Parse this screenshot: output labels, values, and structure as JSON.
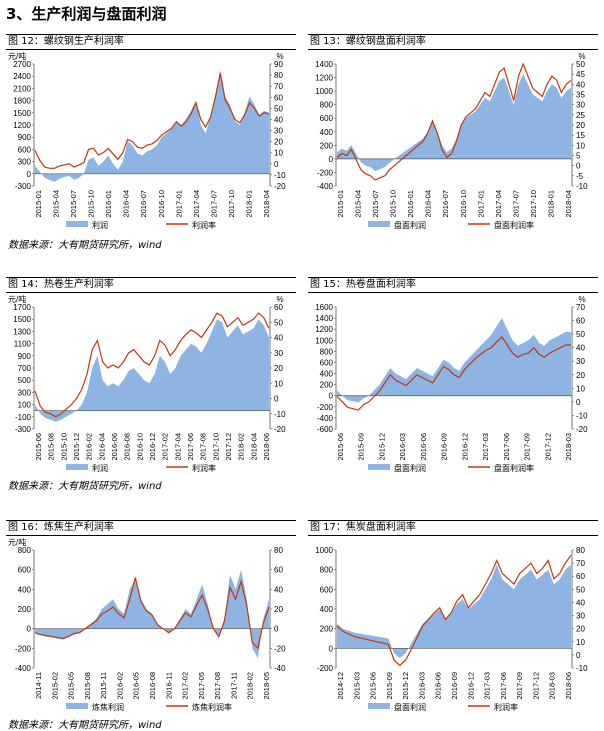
{
  "section_title": "3、生产利润与盘面利润",
  "source_note": "数据来源：大有期货研究所，wind",
  "colors": {
    "bar": "#8eb4e3",
    "line": "#c0390f"
  },
  "chart_data": [
    {
      "type": "area",
      "title": "图 12：螺纹钢生产利润率",
      "left_unit": "元/吨",
      "right_unit": "%",
      "left_ticks": [
        -300,
        0,
        300,
        600,
        900,
        1200,
        1500,
        1800,
        2100,
        2400,
        2700
      ],
      "right_ticks": [
        -20,
        -10,
        0,
        10,
        20,
        30,
        40,
        50,
        60,
        70,
        80,
        90
      ],
      "x_ticks": [
        "2015-01",
        "2015-04",
        "2015-07",
        "2015-10",
        "2016-01",
        "2016-04",
        "2016-07",
        "2016-10",
        "2017-01",
        "2017-04",
        "2017-07",
        "2017-10",
        "2018-01",
        "2018-04"
      ],
      "series": [
        {
          "name": "利润",
          "kind": "area",
          "axis": "left",
          "values": [
            200,
            50,
            -100,
            -150,
            -200,
            -120,
            -80,
            -50,
            -150,
            -100,
            0,
            350,
            400,
            200,
            300,
            450,
            250,
            100,
            300,
            800,
            700,
            500,
            450,
            550,
            600,
            700,
            900,
            1000,
            1100,
            1300,
            1200,
            1350,
            1550,
            1800,
            1200,
            1000,
            1400,
            1950,
            2550,
            1900,
            1700,
            1300,
            1200,
            1500,
            1900,
            1700,
            1450,
            1550,
            1500
          ]
        },
        {
          "name": "利润率",
          "kind": "line",
          "axis": "right",
          "values": [
            12,
            3,
            -3,
            -4,
            -4,
            -2,
            -1,
            0,
            -3,
            -1,
            1,
            13,
            14,
            8,
            10,
            14,
            9,
            4,
            10,
            22,
            20,
            15,
            14,
            17,
            18,
            21,
            26,
            29,
            32,
            38,
            34,
            38,
            45,
            55,
            40,
            33,
            42,
            60,
            82,
            58,
            50,
            40,
            37,
            44,
            55,
            50,
            43,
            46,
            45
          ]
        }
      ]
    },
    {
      "type": "area",
      "title": "图 13：螺纹钢盘面利润率",
      "left_unit": "",
      "right_unit": "%",
      "left_ticks": [
        -400,
        -200,
        0,
        200,
        400,
        600,
        800,
        1000,
        1200,
        1400
      ],
      "right_ticks": [
        -10,
        -5,
        0,
        5,
        10,
        15,
        20,
        25,
        30,
        35,
        40,
        45,
        50
      ],
      "x_ticks": [
        "2015-01",
        "2015-04",
        "2015-07",
        "2015-10",
        "2016-01",
        "2016-04",
        "2016-07",
        "2016-10",
        "2017-01",
        "2017-04",
        "2017-07",
        "2017-10",
        "2018-01",
        "2018-04"
      ],
      "series": [
        {
          "name": "盘面利润",
          "kind": "area",
          "axis": "left",
          "values": [
            100,
            150,
            120,
            200,
            80,
            -50,
            -100,
            -120,
            -180,
            -150,
            -120,
            -60,
            0,
            50,
            100,
            150,
            200,
            250,
            300,
            400,
            550,
            400,
            200,
            100,
            150,
            300,
            500,
            600,
            650,
            700,
            800,
            900,
            850,
            1000,
            1150,
            1200,
            1000,
            800,
            1100,
            1250,
            1100,
            950,
            900,
            850,
            1000,
            1100,
            1050,
            900,
            1000,
            1050
          ]
        },
        {
          "name": "盘面利润率",
          "kind": "line",
          "axis": "right",
          "values": [
            4,
            6,
            5,
            8,
            3,
            -2,
            -4,
            -5,
            -7,
            -6,
            -5,
            -2,
            0,
            2,
            4,
            6,
            8,
            10,
            12,
            16,
            22,
            16,
            8,
            4,
            6,
            12,
            20,
            24,
            26,
            28,
            32,
            36,
            34,
            40,
            46,
            48,
            40,
            32,
            44,
            50,
            44,
            38,
            36,
            34,
            40,
            44,
            42,
            36,
            40,
            42
          ]
        }
      ]
    },
    {
      "type": "area",
      "title": "图 14：热卷生产利润率",
      "left_unit": "元/吨",
      "right_unit": "%",
      "left_ticks": [
        -300,
        -100,
        100,
        300,
        500,
        700,
        900,
        1100,
        1300,
        1500,
        1700
      ],
      "right_ticks": [
        -20,
        -10,
        0,
        10,
        20,
        30,
        40,
        50,
        60
      ],
      "x_ticks": [
        "2015-06",
        "2015-08",
        "2015-10",
        "2015-12",
        "2016-02",
        "2016-04",
        "2016-06",
        "2016-08",
        "2016-10",
        "2016-12",
        "2017-02",
        "2017-04",
        "2017-06",
        "2017-08",
        "2017-10",
        "2017-12",
        "2018-02",
        "2018-04",
        "2018-06"
      ],
      "series": [
        {
          "name": "利润",
          "kind": "area",
          "axis": "left",
          "values": [
            100,
            -50,
            -120,
            -150,
            -180,
            -150,
            -100,
            -50,
            0,
            100,
            300,
            700,
            900,
            500,
            400,
            450,
            400,
            500,
            650,
            700,
            600,
            500,
            450,
            600,
            900,
            800,
            600,
            700,
            900,
            1000,
            1100,
            1050,
            950,
            1100,
            1300,
            1500,
            1450,
            1200,
            1300,
            1400,
            1250,
            1300,
            1350,
            1500,
            1400,
            1200
          ]
        },
        {
          "name": "利润率",
          "kind": "line",
          "axis": "right",
          "values": [
            5,
            -5,
            -9,
            -10,
            -12,
            -10,
            -7,
            -4,
            0,
            6,
            16,
            32,
            38,
            24,
            20,
            22,
            20,
            24,
            30,
            32,
            28,
            24,
            22,
            28,
            38,
            35,
            28,
            32,
            38,
            42,
            45,
            43,
            40,
            45,
            50,
            56,
            54,
            47,
            50,
            53,
            48,
            50,
            52,
            56,
            53,
            46
          ]
        }
      ]
    },
    {
      "type": "area",
      "title": "图 15：热卷盘面利润率",
      "left_unit": "",
      "right_unit": "%",
      "left_ticks": [
        -600,
        -400,
        -200,
        0,
        200,
        400,
        600,
        800,
        1000,
        1200,
        1400,
        1600
      ],
      "right_ticks": [
        -20,
        -10,
        0,
        10,
        20,
        30,
        40,
        50,
        60,
        70
      ],
      "x_ticks": [
        "2015-06",
        "2015-09",
        "2015-12",
        "2016-03",
        "2016-06",
        "2016-09",
        "2016-12",
        "2017-03",
        "2017-06",
        "2017-09",
        "2017-12",
        "2018-03"
      ],
      "series": [
        {
          "name": "盘面利润",
          "kind": "area",
          "axis": "left",
          "values": [
            100,
            0,
            -80,
            -100,
            -120,
            -50,
            0,
            100,
            200,
            350,
            500,
            400,
            350,
            300,
            400,
            500,
            450,
            400,
            350,
            500,
            650,
            600,
            500,
            450,
            600,
            700,
            800,
            900,
            1000,
            1100,
            1250,
            1400,
            1200,
            1000,
            900,
            950,
            1000,
            1100,
            950,
            900,
            1000,
            1050,
            1100,
            1150,
            1150
          ]
        },
        {
          "name": "盘面利润率",
          "kind": "line",
          "axis": "right",
          "values": [
            4,
            0,
            -4,
            -5,
            -6,
            -2,
            0,
            4,
            8,
            14,
            20,
            16,
            14,
            12,
            16,
            20,
            18,
            16,
            14,
            20,
            26,
            24,
            20,
            18,
            24,
            28,
            32,
            35,
            38,
            40,
            44,
            48,
            42,
            36,
            33,
            35,
            36,
            40,
            35,
            33,
            36,
            38,
            40,
            42,
            42
          ]
        }
      ]
    },
    {
      "type": "area",
      "title": "图 16：炼焦生产利润率",
      "left_unit": "元/吨",
      "right_unit": "",
      "left_ticks": [
        -400,
        -200,
        0,
        200,
        400,
        600,
        800
      ],
      "right_ticks": [
        -40,
        -20,
        0,
        20,
        40,
        60,
        80
      ],
      "x_ticks": [
        "2014-11",
        "2015-02",
        "2015-05",
        "2015-08",
        "2015-11",
        "2016-02",
        "2016-05",
        "2016-08",
        "2016-11",
        "2017-02",
        "2017-05",
        "2017-08",
        "2017-11",
        "2018-02",
        "2018-05"
      ],
      "series": [
        {
          "name": "炼焦利润",
          "kind": "area",
          "axis": "left",
          "values": [
            -50,
            -70,
            -80,
            -90,
            -100,
            -110,
            -90,
            -60,
            -50,
            0,
            50,
            100,
            200,
            250,
            300,
            200,
            150,
            400,
            500,
            300,
            200,
            150,
            50,
            0,
            -50,
            0,
            100,
            200,
            150,
            300,
            450,
            250,
            0,
            -100,
            100,
            550,
            400,
            600,
            300,
            -200,
            -300,
            100,
            300
          ]
        },
        {
          "name": "炼焦利润率",
          "kind": "line",
          "axis": "right",
          "values": [
            -4,
            -6,
            -7,
            -8,
            -9,
            -10,
            -8,
            -5,
            -4,
            0,
            4,
            8,
            15,
            18,
            22,
            15,
            11,
            30,
            52,
            28,
            18,
            14,
            4,
            0,
            -4,
            0,
            8,
            16,
            12,
            24,
            34,
            20,
            0,
            -8,
            8,
            42,
            30,
            48,
            24,
            -14,
            -20,
            6,
            22
          ]
        }
      ]
    },
    {
      "type": "area",
      "title": "图 17：焦炭盘面利润率",
      "left_unit": "",
      "right_unit": "",
      "left_ticks": [
        -200,
        0,
        200,
        400,
        600,
        800,
        1000
      ],
      "right_ticks": [
        -10,
        0,
        10,
        20,
        30,
        40,
        50,
        60,
        70,
        80
      ],
      "x_ticks": [
        "2014-12",
        "2015-03",
        "2015-06",
        "2015-09",
        "2015-12",
        "2016-03",
        "2016-06",
        "2016-09",
        "2016-12",
        "2017-03",
        "2017-06",
        "2017-09",
        "2017-12",
        "2018-03",
        "2018-06"
      ],
      "series": [
        {
          "name": "盘面利润",
          "kind": "area",
          "axis": "left",
          "values": [
            250,
            200,
            180,
            160,
            150,
            140,
            130,
            120,
            110,
            100,
            -50,
            -100,
            -50,
            50,
            150,
            250,
            300,
            350,
            400,
            300,
            350,
            450,
            500,
            400,
            450,
            500,
            600,
            700,
            850,
            700,
            650,
            600,
            700,
            750,
            800,
            700,
            750,
            800,
            650,
            700,
            800,
            850
          ]
        },
        {
          "name": "利润率",
          "kind": "line",
          "axis": "right",
          "values": [
            22,
            18,
            16,
            14,
            13,
            12,
            11,
            10,
            9,
            8,
            -4,
            -8,
            -4,
            4,
            13,
            22,
            27,
            32,
            36,
            27,
            32,
            41,
            46,
            36,
            41,
            46,
            54,
            62,
            72,
            62,
            58,
            54,
            62,
            66,
            70,
            62,
            66,
            72,
            58,
            62,
            70,
            76
          ]
        }
      ]
    }
  ]
}
